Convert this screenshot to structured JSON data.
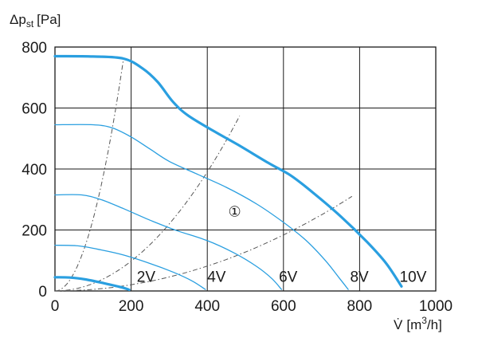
{
  "chart_data": {
    "type": "line",
    "y_axis": {
      "symbol": "Δp",
      "subscript": "st",
      "unit": "[Pa]",
      "ylim": [
        0,
        800
      ],
      "ticks": [
        0,
        200,
        400,
        600,
        800
      ]
    },
    "x_axis": {
      "symbol": "V̇",
      "unit_prefix": "[m",
      "unit_sup": "3",
      "unit_suffix": "/h]",
      "xlim": [
        0,
        1000
      ],
      "ticks": [
        0,
        200,
        400,
        600,
        800,
        1000
      ]
    },
    "grid": true,
    "accent_color": "#2a9fe0",
    "system_color": "#555555",
    "curve_marker": "①",
    "curve_marker_pos": [
      455,
      245
    ],
    "series": [
      {
        "name": "10V",
        "label_pos": [
          905,
          30
        ],
        "width": 3.2,
        "points": [
          [
            0,
            770
          ],
          [
            100,
            769
          ],
          [
            180,
            762
          ],
          [
            230,
            730
          ],
          [
            270,
            685
          ],
          [
            310,
            620
          ],
          [
            350,
            575
          ],
          [
            420,
            522
          ],
          [
            480,
            480
          ],
          [
            560,
            420
          ],
          [
            620,
            378
          ],
          [
            680,
            320
          ],
          [
            750,
            245
          ],
          [
            820,
            160
          ],
          [
            870,
            90
          ],
          [
            910,
            15
          ]
        ]
      },
      {
        "name": "8V",
        "label_pos": [
          775,
          30
        ],
        "width": 1.3,
        "points": [
          [
            0,
            545
          ],
          [
            100,
            545
          ],
          [
            150,
            535
          ],
          [
            200,
            505
          ],
          [
            250,
            465
          ],
          [
            300,
            425
          ],
          [
            370,
            385
          ],
          [
            450,
            340
          ],
          [
            530,
            285
          ],
          [
            600,
            225
          ],
          [
            660,
            165
          ],
          [
            710,
            100
          ],
          [
            745,
            45
          ],
          [
            770,
            5
          ]
        ]
      },
      {
        "name": "6V",
        "label_pos": [
          588,
          30
        ],
        "width": 1.3,
        "points": [
          [
            0,
            315
          ],
          [
            70,
            315
          ],
          [
            120,
            300
          ],
          [
            180,
            270
          ],
          [
            250,
            232
          ],
          [
            320,
            198
          ],
          [
            400,
            165
          ],
          [
            470,
            125
          ],
          [
            530,
            80
          ],
          [
            570,
            40
          ],
          [
            595,
            5
          ]
        ]
      },
      {
        "name": "4V",
        "label_pos": [
          400,
          30
        ],
        "width": 1.3,
        "points": [
          [
            0,
            150
          ],
          [
            60,
            148
          ],
          [
            120,
            135
          ],
          [
            180,
            118
          ],
          [
            250,
            90
          ],
          [
            310,
            62
          ],
          [
            360,
            33
          ],
          [
            395,
            5
          ]
        ]
      },
      {
        "name": "2V",
        "label_pos": [
          215,
          30
        ],
        "width": 3.2,
        "points": [
          [
            0,
            45
          ],
          [
            40,
            44
          ],
          [
            80,
            38
          ],
          [
            130,
            25
          ],
          [
            175,
            12
          ],
          [
            195,
            4
          ]
        ]
      }
    ],
    "system_curves": [
      {
        "k": 0.0235,
        "x_max": 180
      },
      {
        "k": 0.00244,
        "x_max": 485
      },
      {
        "k": 0.00051,
        "x_max": 780
      }
    ]
  }
}
